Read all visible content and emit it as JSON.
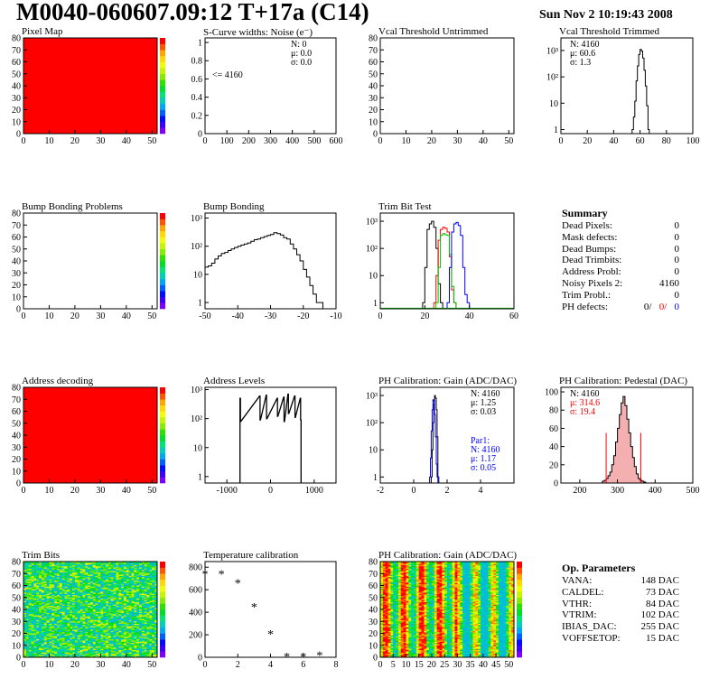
{
  "header": {
    "title": "M0040-060607.09:12 T+17a (C14)",
    "timestamp": "Sun Nov  2 10:19:43 2008"
  },
  "colors": {
    "red": "#ff0000",
    "blue": "#0000ff",
    "green": "#00c000"
  },
  "summary": {
    "title": "Summary",
    "rows": [
      {
        "label": "Dead Pixels:",
        "value": "0"
      },
      {
        "label": "Mask defects:",
        "value": "0"
      },
      {
        "label": "Dead Bumps:",
        "value": "0"
      },
      {
        "label": "Dead Trimbits:",
        "value": "0"
      },
      {
        "label": "Address Probl:",
        "value": "0"
      },
      {
        "label": "Noisy Pixels 2:",
        "value": "4160"
      },
      {
        "label": "Trim Probl.:",
        "value": "0"
      }
    ],
    "ph_label": "PH defects:",
    "ph_values": [
      "0/",
      "0/",
      "0"
    ]
  },
  "op_params": {
    "title": "Op. Parameters",
    "rows": [
      {
        "label": "VANA:",
        "value": "148 DAC"
      },
      {
        "label": "CALDEL:",
        "value": "73 DAC"
      },
      {
        "label": "VTHR:",
        "value": "84 DAC"
      },
      {
        "label": "VTRIM:",
        "value": "102 DAC"
      },
      {
        "label": "IBIAS_DAC:",
        "value": "255 DAC"
      },
      {
        "label": "VOFFSETOP:",
        "value": "15 DAC"
      }
    ]
  },
  "chart_data": [
    {
      "id": "pixel-map",
      "type": "heatmap",
      "title": "Pixel Map",
      "xlim": [
        0,
        52
      ],
      "ylim": [
        0,
        80
      ],
      "xticks": [
        "0",
        "10",
        "20",
        "30",
        "40",
        "50"
      ],
      "yticks": [
        "0",
        "10",
        "20",
        "30",
        "40",
        "50",
        "60",
        "70",
        "80"
      ],
      "fill": "#ff0000",
      "colorbar": {
        "range": [
          0,
          10
        ]
      }
    },
    {
      "id": "scurve",
      "type": "bar",
      "title": "S-Curve widths: Noise (e⁻)",
      "xlim": [
        0,
        600
      ],
      "ylim": [
        0,
        1.05
      ],
      "xticks": [
        "0",
        "100",
        "200",
        "300",
        "400",
        "500",
        "600"
      ],
      "yticks": [
        "0",
        "0.2",
        "0.4",
        "0.6",
        "0.8",
        "1"
      ],
      "stats": [
        "N:    0",
        "μ:  0.0",
        "σ:  0.0"
      ],
      "annotation": "<= 4160"
    },
    {
      "id": "vcal-untrimmed",
      "type": "heatmap",
      "title": "Vcal Threshold Untrimmed",
      "xlim": [
        0,
        52
      ],
      "ylim": [
        0,
        80
      ],
      "xticks": [
        "0",
        "10",
        "20",
        "30",
        "40",
        "50"
      ],
      "yticks": [
        "0",
        "10",
        "20",
        "30",
        "40",
        "50",
        "60",
        "70",
        "80"
      ]
    },
    {
      "id": "vcal-trimmed",
      "type": "bar",
      "title": "Vcal Threshold Trimmed",
      "log": true,
      "xlim": [
        0,
        100
      ],
      "ylim": [
        0.7,
        3000
      ],
      "xticks": [
        "0",
        "20",
        "40",
        "60",
        "80",
        "100"
      ],
      "yticks": [
        "1",
        "10",
        "10²",
        "10³"
      ],
      "stats": [
        "N: 4160",
        "μ:  60.6",
        "σ:   1.3"
      ],
      "series": [
        {
          "color": "#000000",
          "x": [
            54,
            55,
            56,
            57,
            58,
            59,
            60,
            61,
            62,
            63,
            64,
            65,
            66
          ],
          "values": [
            1,
            3,
            12,
            70,
            260,
            700,
            1100,
            950,
            520,
            180,
            45,
            8,
            1
          ]
        }
      ]
    },
    {
      "id": "bump-problems",
      "type": "heatmap",
      "title": "Bump Bonding Problems",
      "xlim": [
        0,
        52
      ],
      "ylim": [
        0,
        80
      ],
      "xticks": [
        "0",
        "10",
        "20",
        "30",
        "40",
        "50"
      ],
      "yticks": [
        "0",
        "10",
        "20",
        "30",
        "40",
        "50",
        "60",
        "70",
        "80"
      ],
      "colorbar": {
        "range": [
          -5,
          5
        ]
      }
    },
    {
      "id": "bump-bonding",
      "type": "bar",
      "title": "Bump Bonding",
      "log": true,
      "xlim": [
        -50,
        -10
      ],
      "ylim": [
        0.6,
        1500
      ],
      "xticks": [
        "-50",
        "-40",
        "-30",
        "-20",
        "-10"
      ],
      "yticks": [
        "1",
        "10",
        "10²",
        "10³"
      ],
      "series": [
        {
          "color": "#000000",
          "x": [
            -50,
            -49,
            -48,
            -47,
            -46,
            -45,
            -44,
            -43,
            -42,
            -41,
            -40,
            -39,
            -38,
            -37,
            -36,
            -35,
            -34,
            -33,
            -32,
            -31,
            -30,
            -29,
            -28,
            -27,
            -26,
            -25,
            -24,
            -23,
            -22,
            -21,
            -20,
            -19,
            -18,
            -17,
            -16,
            -15,
            -14
          ],
          "values": [
            18,
            20,
            25,
            35,
            45,
            55,
            60,
            70,
            80,
            90,
            100,
            110,
            120,
            130,
            150,
            170,
            180,
            200,
            220,
            240,
            260,
            300,
            280,
            250,
            200,
            180,
            120,
            80,
            50,
            30,
            15,
            8,
            4,
            2,
            1,
            1,
            0
          ]
        }
      ]
    },
    {
      "id": "trim-bit-test",
      "type": "bar",
      "title": "Trim Bit Test",
      "log": true,
      "xlim": [
        0,
        60
      ],
      "ylim": [
        0.6,
        2000
      ],
      "xticks": [
        "0",
        "20",
        "40",
        "60"
      ],
      "yticks": [
        "1",
        "10",
        "10²",
        "10³"
      ],
      "series": [
        {
          "color": "#000000",
          "x": [
            19,
            20,
            21,
            22,
            23,
            24,
            25,
            26,
            27
          ],
          "values": [
            1,
            20,
            500,
            800,
            1000,
            600,
            100,
            5,
            1
          ]
        },
        {
          "color": "#ff0000",
          "x": [
            24,
            25,
            26,
            27,
            28,
            29,
            30,
            31,
            32,
            33
          ],
          "values": [
            1,
            10,
            200,
            500,
            600,
            550,
            400,
            50,
            3,
            1
          ]
        },
        {
          "color": "#00c000",
          "x": [
            25,
            26,
            27,
            28,
            29,
            30,
            31,
            32,
            33
          ],
          "values": [
            1,
            20,
            300,
            350,
            320,
            300,
            60,
            4,
            1
          ]
        },
        {
          "color": "#0000ff",
          "x": [
            30,
            31,
            32,
            33,
            34,
            35,
            36,
            37,
            38,
            39
          ],
          "values": [
            1,
            20,
            400,
            800,
            900,
            700,
            300,
            20,
            2,
            1
          ]
        }
      ]
    },
    {
      "id": "address-decoding",
      "type": "heatmap",
      "title": "Address decoding",
      "xlim": [
        0,
        52
      ],
      "ylim": [
        0,
        80
      ],
      "xticks": [
        "0",
        "10",
        "20",
        "30",
        "40",
        "50"
      ],
      "yticks": [
        "0",
        "10",
        "20",
        "30",
        "40",
        "50",
        "60",
        "70",
        "80"
      ],
      "fill": "#ff0000",
      "colorbar": {
        "range": [
          0,
          1
        ]
      }
    },
    {
      "id": "address-levels",
      "type": "bar",
      "title": "Address Levels",
      "log": true,
      "xlim": [
        -1500,
        1500
      ],
      "ylim": [
        0.6,
        1200
      ],
      "xticks": [
        "-1000",
        "0",
        "1000"
      ],
      "yticks": [
        "1",
        "10",
        "10²",
        "10³"
      ],
      "series": [
        {
          "color": "#000000",
          "x": [
            -700,
            -690,
            -250,
            -240,
            -100,
            -90,
            150,
            160,
            300,
            310,
            400,
            410,
            550,
            560,
            680,
            690
          ],
          "values": [
            500,
            80,
            600,
            90,
            650,
            100,
            500,
            120,
            550,
            80,
            700,
            150,
            600,
            110,
            500,
            90
          ]
        }
      ]
    },
    {
      "id": "ph-gain",
      "type": "bar",
      "title": "PH Calibration: Gain (ADC/DAC)",
      "log": true,
      "xlim": [
        -2,
        6
      ],
      "ylim": [
        0.6,
        2000
      ],
      "xticks": [
        "-2",
        "0",
        "2",
        "4"
      ],
      "yticks": [
        "1",
        "10",
        "10²",
        "10³"
      ],
      "stats": [
        "N: 4160",
        "μ: 1.25",
        "σ: 0.03"
      ],
      "fit_stats": [
        "Par1:",
        "N: 4160",
        "μ: 1.17",
        "σ: 0.05"
      ],
      "series": [
        {
          "color": "#000000",
          "x": [
            1.05,
            1.1,
            1.15,
            1.2,
            1.25,
            1.3,
            1.35,
            1.4,
            1.45
          ],
          "values": [
            1,
            10,
            100,
            500,
            1000,
            800,
            300,
            30,
            1
          ]
        },
        {
          "color": "#0000ff",
          "x": [
            0.95,
            1.0,
            1.05,
            1.1,
            1.15,
            1.2,
            1.25,
            1.3,
            1.35,
            1.4
          ],
          "values": [
            1,
            5,
            50,
            300,
            700,
            600,
            200,
            30,
            3,
            1
          ]
        }
      ]
    },
    {
      "id": "ph-pedestal",
      "type": "bar",
      "title": "PH Calibration: Pedestal (DAC)",
      "xlim": [
        150,
        500
      ],
      "ylim": [
        0,
        105
      ],
      "xticks": [
        "200",
        "300",
        "400",
        "500"
      ],
      "yticks": [
        "0",
        "20",
        "40",
        "60",
        "80",
        "100"
      ],
      "stats": [
        "N: 4160",
        "μ: 314.6",
        "σ: 19.4"
      ],
      "cut_lines": [
        270,
        362
      ],
      "series": [
        {
          "color": "#000000",
          "x": [
            260,
            265,
            270,
            275,
            280,
            285,
            290,
            295,
            300,
            305,
            310,
            315,
            320,
            325,
            330,
            335,
            340,
            345,
            350,
            355,
            360,
            365,
            370
          ],
          "values": [
            2,
            3,
            5,
            8,
            12,
            20,
            30,
            45,
            60,
            75,
            88,
            95,
            85,
            70,
            55,
            40,
            28,
            18,
            10,
            5,
            3,
            2,
            1
          ]
        }
      ]
    },
    {
      "id": "trim-bits",
      "type": "heatmap",
      "title": "Trim Bits",
      "xlim": [
        0,
        52
      ],
      "ylim": [
        0,
        80
      ],
      "xticks": [
        "0",
        "10",
        "20",
        "30",
        "40",
        "50"
      ],
      "yticks": [
        "0",
        "10",
        "20",
        "30",
        "40",
        "50",
        "60",
        "70",
        "80"
      ],
      "colorbar": {
        "range": [
          0,
          16
        ]
      }
    },
    {
      "id": "temperature",
      "type": "scatter",
      "title": "Temperature calibration",
      "xlim": [
        0,
        8
      ],
      "ylim": [
        0,
        850
      ],
      "xticks": [
        "0",
        "2",
        "4",
        "6",
        "8"
      ],
      "yticks": [
        "0",
        "200",
        "400",
        "600",
        "800"
      ],
      "x": [
        0,
        1,
        2,
        3,
        4,
        5,
        6,
        7
      ],
      "values": [
        740,
        740,
        660,
        450,
        210,
        10,
        10,
        20
      ]
    },
    {
      "id": "ph-gain-map",
      "type": "heatmap",
      "title": "PH Calibration: Gain (ADC/DAC)",
      "xlim": [
        0,
        52
      ],
      "ylim": [
        0,
        80
      ],
      "xticks": [
        "0",
        "5",
        "10",
        "15",
        "20",
        "25",
        "30",
        "35",
        "40",
        "45",
        "50"
      ],
      "yticks": [
        "0",
        "10",
        "20",
        "30",
        "40",
        "50",
        "60",
        "70",
        "80"
      ],
      "colorbar": {
        "range": [
          1.1,
          1.3
        ]
      }
    }
  ]
}
